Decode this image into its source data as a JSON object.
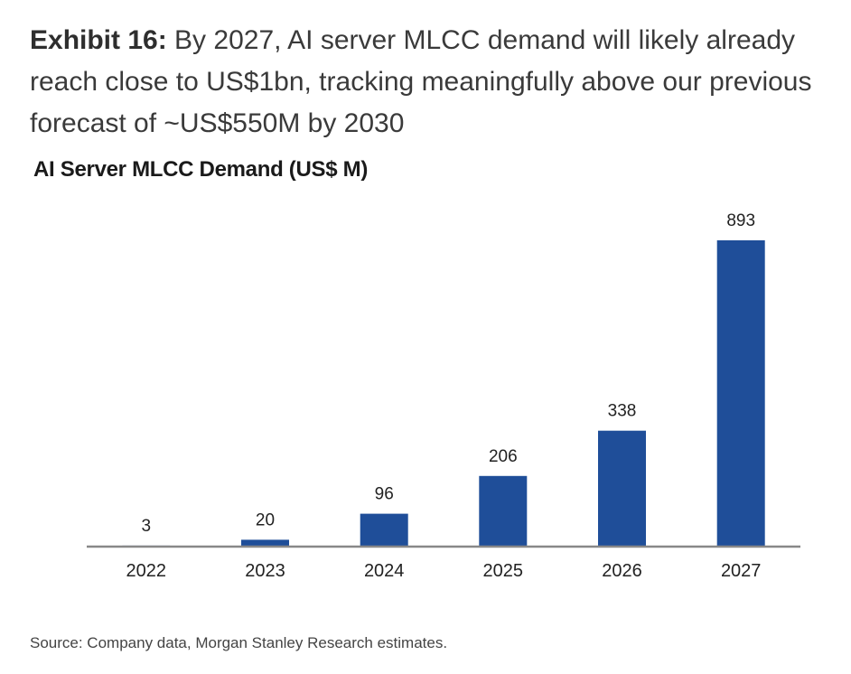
{
  "exhibit": {
    "label": "Exhibit 16:",
    "text": "By 2027, AI server MLCC demand will likely already reach close to US$1bn, tracking meaningfully above our previous forecast of ~US$550M by 2030"
  },
  "source": "Source: Company data, Morgan Stanley Research estimates.",
  "colors": {
    "bar": "#1f4e99",
    "axis": "#888888"
  },
  "chart_data": {
    "type": "bar",
    "title": "AI Server MLCC Demand (US$ M)",
    "xlabel": "",
    "ylabel": "",
    "categories": [
      "2022",
      "2023",
      "2024",
      "2025",
      "2026",
      "2027"
    ],
    "values": [
      3,
      20,
      96,
      206,
      338,
      893
    ],
    "ylim": [
      0,
      893
    ],
    "grid": false,
    "legend": "none",
    "data_labels": true
  }
}
